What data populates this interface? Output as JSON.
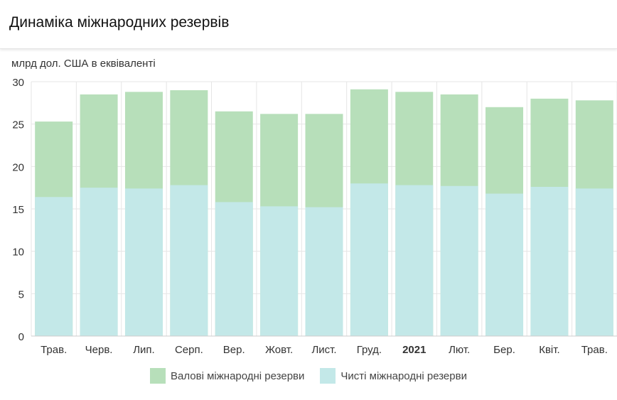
{
  "header": {
    "title": "Динаміка міжнародних резервів"
  },
  "chart_data": {
    "type": "bar",
    "title": "",
    "ylabel": "млрд дол. США в еквіваленті",
    "xlabel": "",
    "ylim": [
      0,
      30
    ],
    "yticks": [
      0,
      5,
      10,
      15,
      20,
      25,
      30
    ],
    "grid": true,
    "legend_position": "bottom",
    "overlap": true,
    "categories": [
      "Трав.",
      "Черв.",
      "Лип.",
      "Серп.",
      "Вер.",
      "Жовт.",
      "Лист.",
      "Груд.",
      "2021",
      "Лют.",
      "Бер.",
      "Квіт.",
      "Трав."
    ],
    "bold_categories": [
      "2021"
    ],
    "series": [
      {
        "name": "Валові міжнародні резерви",
        "color": "#b7dfba",
        "values": [
          25.3,
          28.5,
          28.8,
          29.0,
          26.5,
          26.2,
          26.2,
          29.1,
          28.8,
          28.5,
          27.0,
          28.0,
          27.8
        ]
      },
      {
        "name": "Чисті міжнародні резерви",
        "color": "#c3e8e8",
        "values": [
          16.4,
          17.5,
          17.4,
          17.8,
          15.8,
          15.3,
          15.2,
          18.0,
          17.8,
          17.7,
          16.8,
          17.6,
          17.4
        ]
      }
    ]
  }
}
